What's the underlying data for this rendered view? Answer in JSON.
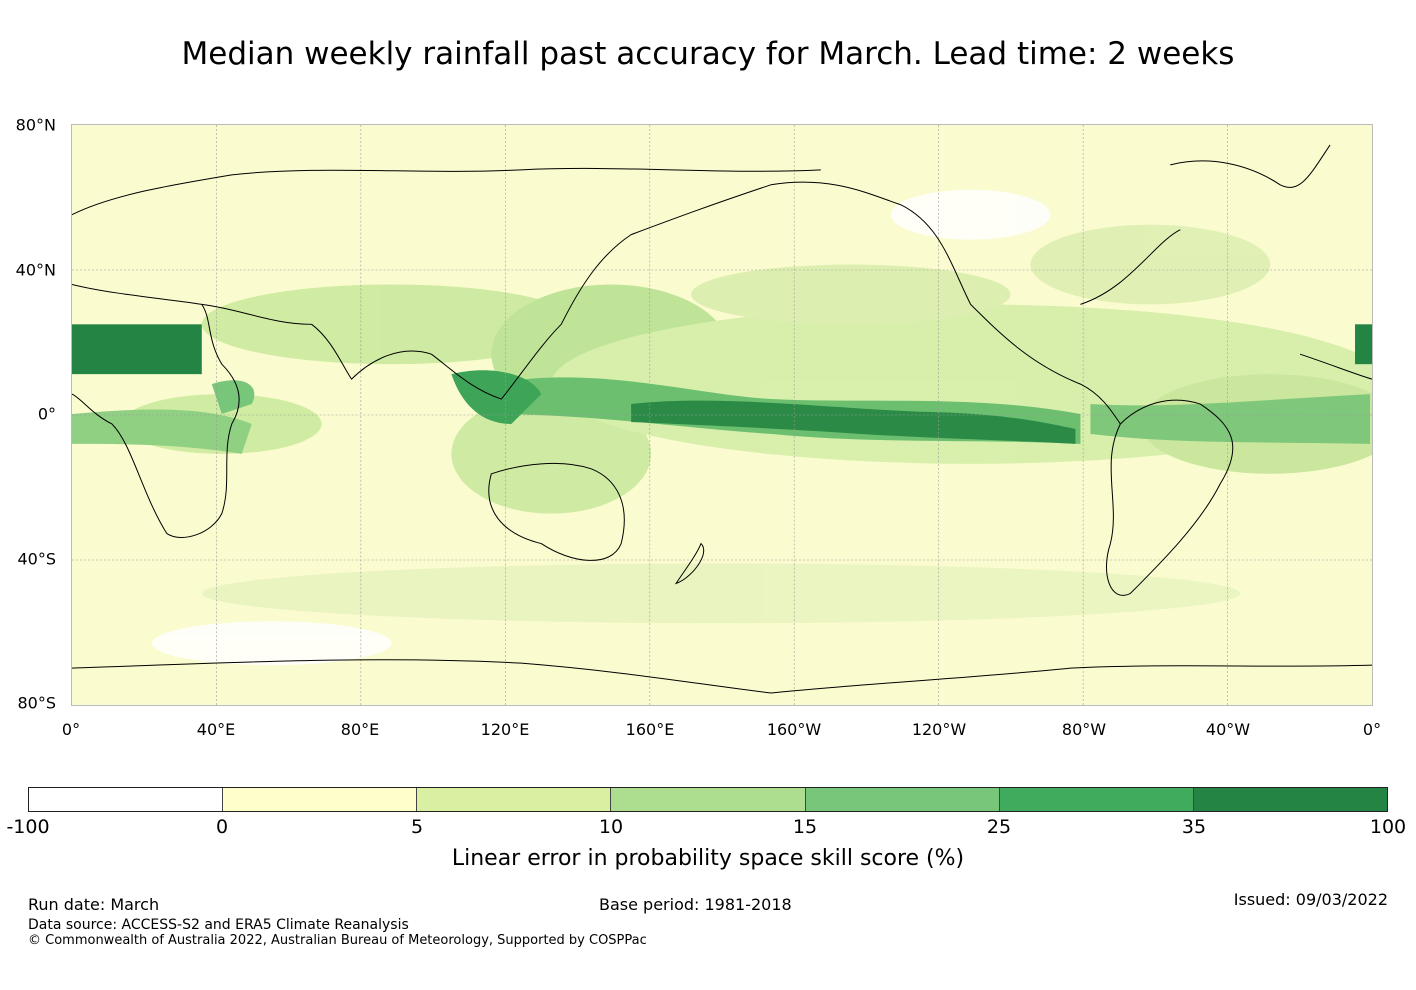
{
  "title": "Median weekly rainfall past accuracy for March. Lead time: 2 weeks",
  "map": {
    "lat_labels": [
      "80°N",
      "40°N",
      "0°",
      "40°S",
      "80°S"
    ],
    "lon_labels": [
      "0°",
      "40°E",
      "80°E",
      "120°E",
      "160°E",
      "160°W",
      "120°W",
      "80°W",
      "40°W",
      "0°"
    ]
  },
  "colorbar": {
    "ticks": [
      "-100",
      "0",
      "5",
      "10",
      "15",
      "25",
      "35",
      "100"
    ],
    "colors": [
      "#ffffff",
      "#ffffcc",
      "#d9f0a3",
      "#addd8e",
      "#78c679",
      "#41ab5d",
      "#238443"
    ],
    "label": "Linear error in probability space skill score (%)"
  },
  "footer": {
    "run_date": "Run date: March",
    "base_period": "Base period: 1981-2018",
    "issued": "Issued: 09/03/2022",
    "data_source": "Data source: ACCESS-S2 and ERA5 Climate Reanalysis",
    "copyright": "© Commonwealth of Australia 2022, Australian Bureau of Meteorology, Supported by COSPPac"
  }
}
